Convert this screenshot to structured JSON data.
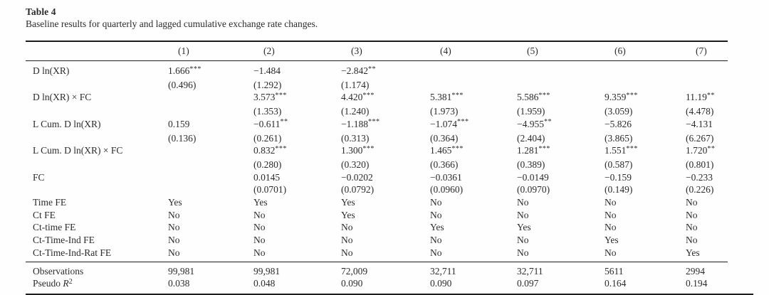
{
  "table": {
    "label": "Table 4",
    "caption": "Baseline results for quarterly and lagged cumulative exchange rate changes.",
    "columns": [
      "",
      "(1)",
      "(2)",
      "(3)",
      "(4)",
      "(5)",
      "(6)",
      "(7)"
    ],
    "body_rows": [
      {
        "label": "D ln(XR)",
        "cells": [
          "1.666***",
          "−1.484",
          "−2.842**",
          "",
          "",
          "",
          ""
        ]
      },
      {
        "label": "",
        "cells": [
          "(0.496)",
          "(1.292)",
          "(1.174)",
          "",
          "",
          "",
          ""
        ]
      },
      {
        "label": "D ln(XR) × FC",
        "cells": [
          "",
          "3.573***",
          "4.420***",
          "5.381***",
          "5.586***",
          "9.359***",
          "11.19**"
        ]
      },
      {
        "label": "",
        "cells": [
          "",
          "(1.353)",
          "(1.240)",
          "(1.973)",
          "(1.959)",
          "(3.059)",
          "(4.478)"
        ]
      },
      {
        "label": "L Cum. D ln(XR)",
        "cells": [
          "0.159",
          "−0.611**",
          "−1.188***",
          "−1.074***",
          "−4.955**",
          "−5.826",
          "−4.131"
        ]
      },
      {
        "label": "",
        "cells": [
          "(0.136)",
          "(0.261)",
          "(0.313)",
          "(0.364)",
          "(2.404)",
          "(3.865)",
          "(6.267)"
        ]
      },
      {
        "label": "L Cum. D ln(XR) × FC",
        "cells": [
          "",
          "0.832***",
          "1.300***",
          "1.465***",
          "1.281***",
          "1.551***",
          "1.720**"
        ]
      },
      {
        "label": "",
        "cells": [
          "",
          "(0.280)",
          "(0.320)",
          "(0.366)",
          "(0.389)",
          "(0.587)",
          "(0.801)"
        ]
      },
      {
        "label": "FC",
        "cells": [
          "",
          "0.0145",
          "−0.0202",
          "−0.0361",
          "−0.0149",
          "−0.159",
          "−0.233"
        ]
      },
      {
        "label": "",
        "cells": [
          "",
          "(0.0701)",
          "(0.0792)",
          "(0.0960)",
          "(0.0970)",
          "(0.149)",
          "(0.226)"
        ]
      },
      {
        "label": "Time FE",
        "cells": [
          "Yes",
          "Yes",
          "Yes",
          "No",
          "No",
          "No",
          "No"
        ]
      },
      {
        "label": "Ct FE",
        "cells": [
          "No",
          "No",
          "Yes",
          "No",
          "No",
          "No",
          "No"
        ]
      },
      {
        "label": "Ct-time FE",
        "cells": [
          "No",
          "No",
          "No",
          "Yes",
          "Yes",
          "No",
          "No"
        ]
      },
      {
        "label": "Ct-Time-Ind FE",
        "cells": [
          "No",
          "No",
          "No",
          "No",
          "No",
          "Yes",
          "No"
        ]
      },
      {
        "label": "Ct-Time-Ind-Rat FE",
        "cells": [
          "No",
          "No",
          "No",
          "No",
          "No",
          "No",
          "Yes"
        ]
      }
    ],
    "footer_rows": [
      {
        "label": "Observations",
        "cells": [
          "99,981",
          "99,981",
          "72,009",
          "32,711",
          "32,711",
          "5611",
          "2994"
        ]
      },
      {
        "label": "Pseudo R2",
        "label_parts": [
          [
            "Pseudo ",
            ""
          ],
          [
            "R",
            "ital"
          ],
          [
            "2",
            "sup"
          ]
        ],
        "cells": [
          "0.038",
          "0.048",
          "0.090",
          "0.090",
          "0.097",
          "0.164",
          "0.194"
        ]
      }
    ],
    "colors": {
      "text": "#2b2b2b",
      "rule": "#1c1c1c",
      "background": "#fefefe"
    }
  }
}
